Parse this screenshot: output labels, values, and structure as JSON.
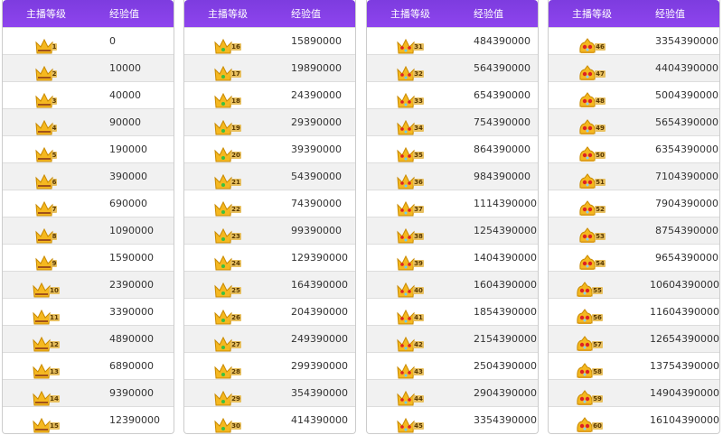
{
  "headers": {
    "level": "主播等级",
    "exp": "经验值"
  },
  "colors": {
    "header": "#8a40e8",
    "row_alt": "#f1f1f1"
  },
  "tables": [
    {
      "rows": [
        {
          "level": "1",
          "exp": "0"
        },
        {
          "level": "2",
          "exp": "10000"
        },
        {
          "level": "3",
          "exp": "40000"
        },
        {
          "level": "4",
          "exp": "90000"
        },
        {
          "level": "5",
          "exp": "190000"
        },
        {
          "level": "6",
          "exp": "390000"
        },
        {
          "level": "7",
          "exp": "690000"
        },
        {
          "level": "8",
          "exp": "1090000"
        },
        {
          "level": "9",
          "exp": "1590000"
        },
        {
          "level": "10",
          "exp": "2390000"
        },
        {
          "level": "11",
          "exp": "3390000"
        },
        {
          "level": "12",
          "exp": "4890000"
        },
        {
          "level": "13",
          "exp": "6890000"
        },
        {
          "level": "14",
          "exp": "9390000"
        },
        {
          "level": "15",
          "exp": "12390000"
        }
      ]
    },
    {
      "rows": [
        {
          "level": "16",
          "exp": "15890000"
        },
        {
          "level": "17",
          "exp": "19890000"
        },
        {
          "level": "18",
          "exp": "24390000"
        },
        {
          "level": "19",
          "exp": "29390000"
        },
        {
          "level": "20",
          "exp": "39390000"
        },
        {
          "level": "21",
          "exp": "54390000"
        },
        {
          "level": "22",
          "exp": "74390000"
        },
        {
          "level": "23",
          "exp": "99390000"
        },
        {
          "level": "24",
          "exp": "129390000"
        },
        {
          "level": "25",
          "exp": "164390000"
        },
        {
          "level": "26",
          "exp": "204390000"
        },
        {
          "level": "27",
          "exp": "249390000"
        },
        {
          "level": "28",
          "exp": "299390000"
        },
        {
          "level": "29",
          "exp": "354390000"
        },
        {
          "level": "30",
          "exp": "414390000"
        }
      ]
    },
    {
      "rows": [
        {
          "level": "31",
          "exp": "484390000"
        },
        {
          "level": "32",
          "exp": "564390000"
        },
        {
          "level": "33",
          "exp": "654390000"
        },
        {
          "level": "34",
          "exp": "754390000"
        },
        {
          "level": "35",
          "exp": "864390000"
        },
        {
          "level": "36",
          "exp": "984390000"
        },
        {
          "level": "37",
          "exp": "1114390000"
        },
        {
          "level": "38",
          "exp": "1254390000"
        },
        {
          "level": "39",
          "exp": "1404390000"
        },
        {
          "level": "40",
          "exp": "1604390000"
        },
        {
          "level": "41",
          "exp": "1854390000"
        },
        {
          "level": "42",
          "exp": "2154390000"
        },
        {
          "level": "43",
          "exp": "2504390000"
        },
        {
          "level": "44",
          "exp": "2904390000"
        },
        {
          "level": "45",
          "exp": "3354390000"
        }
      ]
    },
    {
      "rows": [
        {
          "level": "46",
          "exp": "3354390000"
        },
        {
          "level": "47",
          "exp": "4404390000"
        },
        {
          "level": "48",
          "exp": "5004390000"
        },
        {
          "level": "49",
          "exp": "5654390000"
        },
        {
          "level": "50",
          "exp": "6354390000"
        },
        {
          "level": "51",
          "exp": "7104390000"
        },
        {
          "level": "52",
          "exp": "7904390000"
        },
        {
          "level": "53",
          "exp": "8754390000"
        },
        {
          "level": "54",
          "exp": "9654390000"
        },
        {
          "level": "55",
          "exp": "10604390000"
        },
        {
          "level": "56",
          "exp": "11604390000"
        },
        {
          "level": "57",
          "exp": "12654390000"
        },
        {
          "level": "58",
          "exp": "13754390000"
        },
        {
          "level": "59",
          "exp": "14904390000"
        },
        {
          "level": "60",
          "exp": "16104390000"
        }
      ]
    }
  ]
}
